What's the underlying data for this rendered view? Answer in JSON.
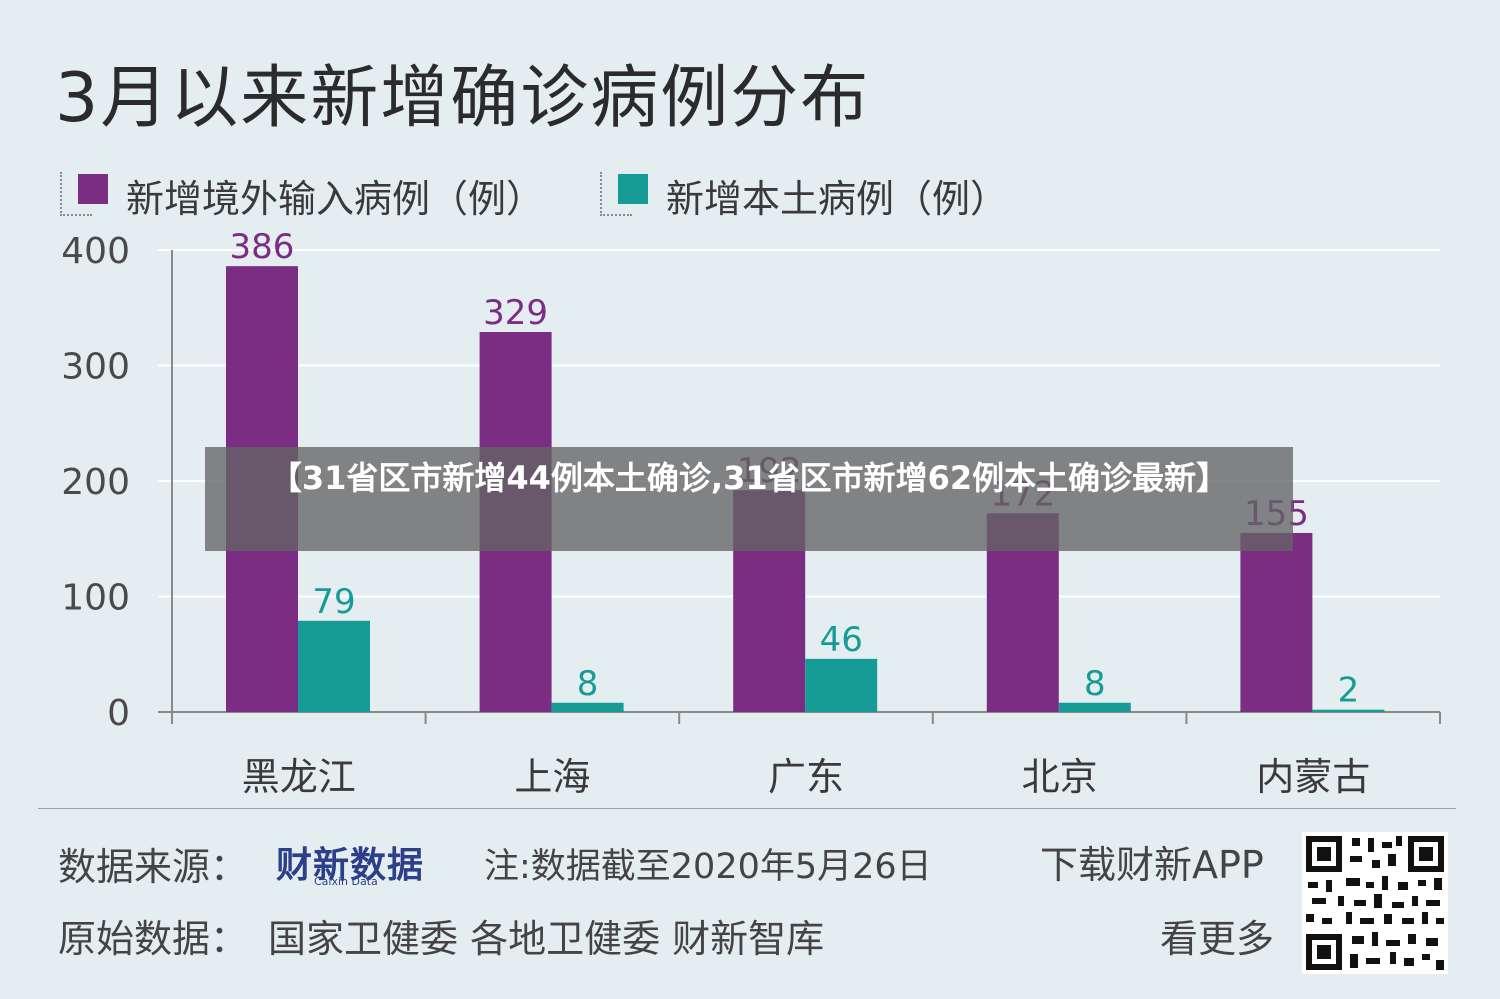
{
  "chart_data": {
    "type": "bar",
    "title": "3月以来新增确诊病例分布",
    "categories": [
      "黑龙江",
      "上海",
      "广东",
      "北京",
      "内蒙古"
    ],
    "series": [
      {
        "name": "新增境外输入病例（例）",
        "color": "#7b2d83",
        "values": [
          386,
          329,
          192,
          172,
          155
        ]
      },
      {
        "name": "新增本土病例（例）",
        "color": "#169b96",
        "values": [
          79,
          8,
          46,
          8,
          2
        ]
      }
    ],
    "data_labels": [
      [
        "386",
        "329",
        "192",
        "172",
        "155"
      ],
      [
        "79",
        "8",
        "46",
        "8",
        "2"
      ]
    ],
    "label_colors": [
      "#7b2d83",
      "#169b96"
    ],
    "ylim": [
      0,
      400
    ],
    "yticks": [
      "0",
      "100",
      "200",
      "300",
      "400"
    ],
    "grid": true
  },
  "legend": {
    "import_label": "新增境外输入病例（例）",
    "local_label": "新增本土病例（例）"
  },
  "footer": {
    "source_label": "数据来源：",
    "brand_name": "财新数据",
    "brand_sub": "Caixin Data",
    "note": "注:数据截至2020年5月26日",
    "download": "下载财新APP",
    "raw_label": "原始数据：",
    "raw_sources": "国家卫健委  各地卫健委  财新智库",
    "more": "看更多"
  },
  "overlay": {
    "headline": "【31省区市新增44例本土确诊,31省区市新增62例本土确诊最新】"
  }
}
